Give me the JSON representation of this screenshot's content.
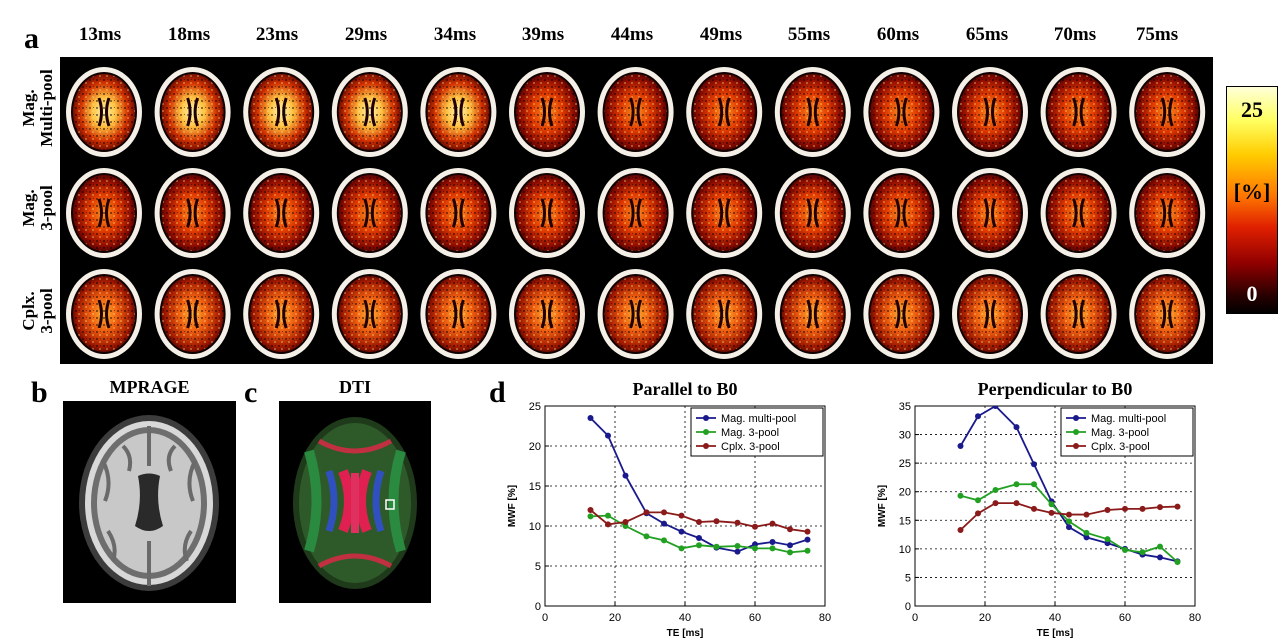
{
  "panels": {
    "a": "a",
    "b": "b",
    "c": "c",
    "d": "d"
  },
  "te_labels": [
    "13ms",
    "18ms",
    "23ms",
    "29ms",
    "34ms",
    "39ms",
    "44ms",
    "49ms",
    "55ms",
    "60ms",
    "65ms",
    "70ms",
    "75ms"
  ],
  "row_labels": [
    "Mag.\nMulti-pool",
    "Mag.\n3-pool",
    "Cplx.\n3-pool"
  ],
  "colorbar": {
    "max": "25",
    "unit": "[%]",
    "min": "0"
  },
  "image_titles": {
    "mprage": "MPRAGE",
    "dti": "DTI"
  },
  "colors": {
    "blue": "#1a1a8c",
    "green": "#22a022",
    "red": "#8b1a1a"
  },
  "chart_data": [
    {
      "type": "line",
      "title": "Parallel to B0",
      "xlabel": "TE [ms]",
      "ylabel": "MWF [%]",
      "xlim": [
        0,
        80
      ],
      "ylim": [
        0,
        25
      ],
      "xticks": [
        0,
        20,
        40,
        60,
        80
      ],
      "yticks": [
        0,
        5,
        10,
        15,
        20,
        25
      ],
      "grid": true,
      "legend_position": "top-right",
      "x": [
        13,
        18,
        23,
        29,
        34,
        39,
        44,
        49,
        55,
        60,
        65,
        70,
        75
      ],
      "series": [
        {
          "name": "Mag. multi-pool",
          "color": "#1a1a8c",
          "values": [
            23.5,
            21.3,
            16.3,
            11.6,
            10.3,
            9.3,
            8.5,
            7.3,
            6.8,
            7.7,
            8.0,
            7.6,
            8.3
          ]
        },
        {
          "name": "Mag. 3-pool",
          "color": "#22a022",
          "values": [
            11.2,
            11.3,
            10.0,
            8.7,
            8.2,
            7.2,
            7.6,
            7.4,
            7.5,
            7.2,
            7.2,
            6.7,
            6.9
          ]
        },
        {
          "name": "Cplx. 3-pool",
          "color": "#8b1a1a",
          "values": [
            12.0,
            10.2,
            10.5,
            11.7,
            11.7,
            11.3,
            10.5,
            10.6,
            10.4,
            9.9,
            10.3,
            9.6,
            9.3
          ]
        }
      ]
    },
    {
      "type": "line",
      "title": "Perpendicular  to B0",
      "xlabel": "TE [ms]",
      "ylabel": "MWF [%]",
      "xlim": [
        0,
        80
      ],
      "ylim": [
        0,
        35
      ],
      "xticks": [
        0,
        20,
        40,
        60,
        80
      ],
      "yticks": [
        0,
        5,
        10,
        15,
        20,
        25,
        30,
        35
      ],
      "grid": true,
      "legend_position": "top-right",
      "x": [
        13,
        18,
        23,
        29,
        34,
        39,
        44,
        49,
        55,
        60,
        65,
        70,
        75
      ],
      "series": [
        {
          "name": "Mag. multi-pool",
          "color": "#1a1a8c",
          "values": [
            28.0,
            33.2,
            35.0,
            31.3,
            24.8,
            18.3,
            13.8,
            12.0,
            11.0,
            10.0,
            9.0,
            8.5,
            7.8
          ]
        },
        {
          "name": "Mag. 3-pool",
          "color": "#22a022",
          "values": [
            19.3,
            18.5,
            20.3,
            21.3,
            21.3,
            17.8,
            14.8,
            12.8,
            11.7,
            9.8,
            9.4,
            10.4,
            7.7
          ]
        },
        {
          "name": "Cplx. 3-pool",
          "color": "#8b1a1a",
          "values": [
            13.3,
            16.2,
            18.0,
            18.0,
            17.0,
            16.3,
            16.0,
            16.0,
            16.8,
            17.0,
            17.0,
            17.3,
            17.4
          ]
        }
      ]
    }
  ]
}
